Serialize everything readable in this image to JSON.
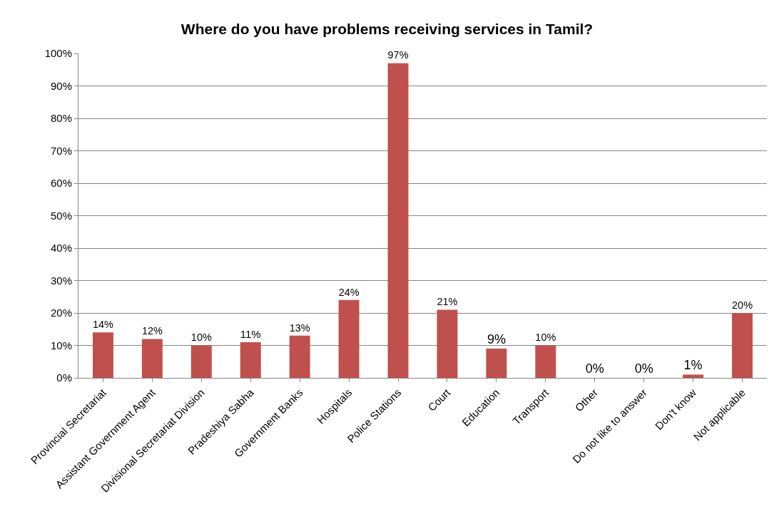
{
  "chart_data": {
    "type": "bar",
    "title": "Where do you have problems receiving services in Tamil?",
    "categories": [
      "Provincial Secretariat",
      "Assistant Government Agent",
      "Divisional Secretariat Division",
      "Pradeshiya Sabha",
      "Government Banks",
      "Hospitals",
      "Police Stations",
      "Court",
      "Education",
      "Transport",
      "Other",
      "Do not like to answer",
      "Don't know",
      "Not applicable"
    ],
    "values": [
      14,
      12,
      10,
      11,
      13,
      24,
      97,
      21,
      9,
      10,
      0,
      0,
      1,
      20
    ],
    "value_labels": [
      "14%",
      "12%",
      "10%",
      "11%",
      "13%",
      "24%",
      "97%",
      "21%",
      "9%",
      "10%",
      "0%",
      "0%",
      "1%",
      "20%"
    ],
    "color": "#c0504d",
    "ylim": [
      0,
      100
    ],
    "yticks": [
      {
        "value": 0,
        "label": "0%"
      },
      {
        "value": 10,
        "label": "10%"
      },
      {
        "value": 20,
        "label": "20%"
      },
      {
        "value": 30,
        "label": "30%"
      },
      {
        "value": 40,
        "label": "40%"
      },
      {
        "value": 50,
        "label": "50%"
      },
      {
        "value": 60,
        "label": "60%"
      },
      {
        "value": 70,
        "label": "70%"
      },
      {
        "value": 80,
        "label": "80%"
      },
      {
        "value": 90,
        "label": "90%"
      },
      {
        "value": 100,
        "label": "100%"
      }
    ],
    "grid": "y"
  }
}
